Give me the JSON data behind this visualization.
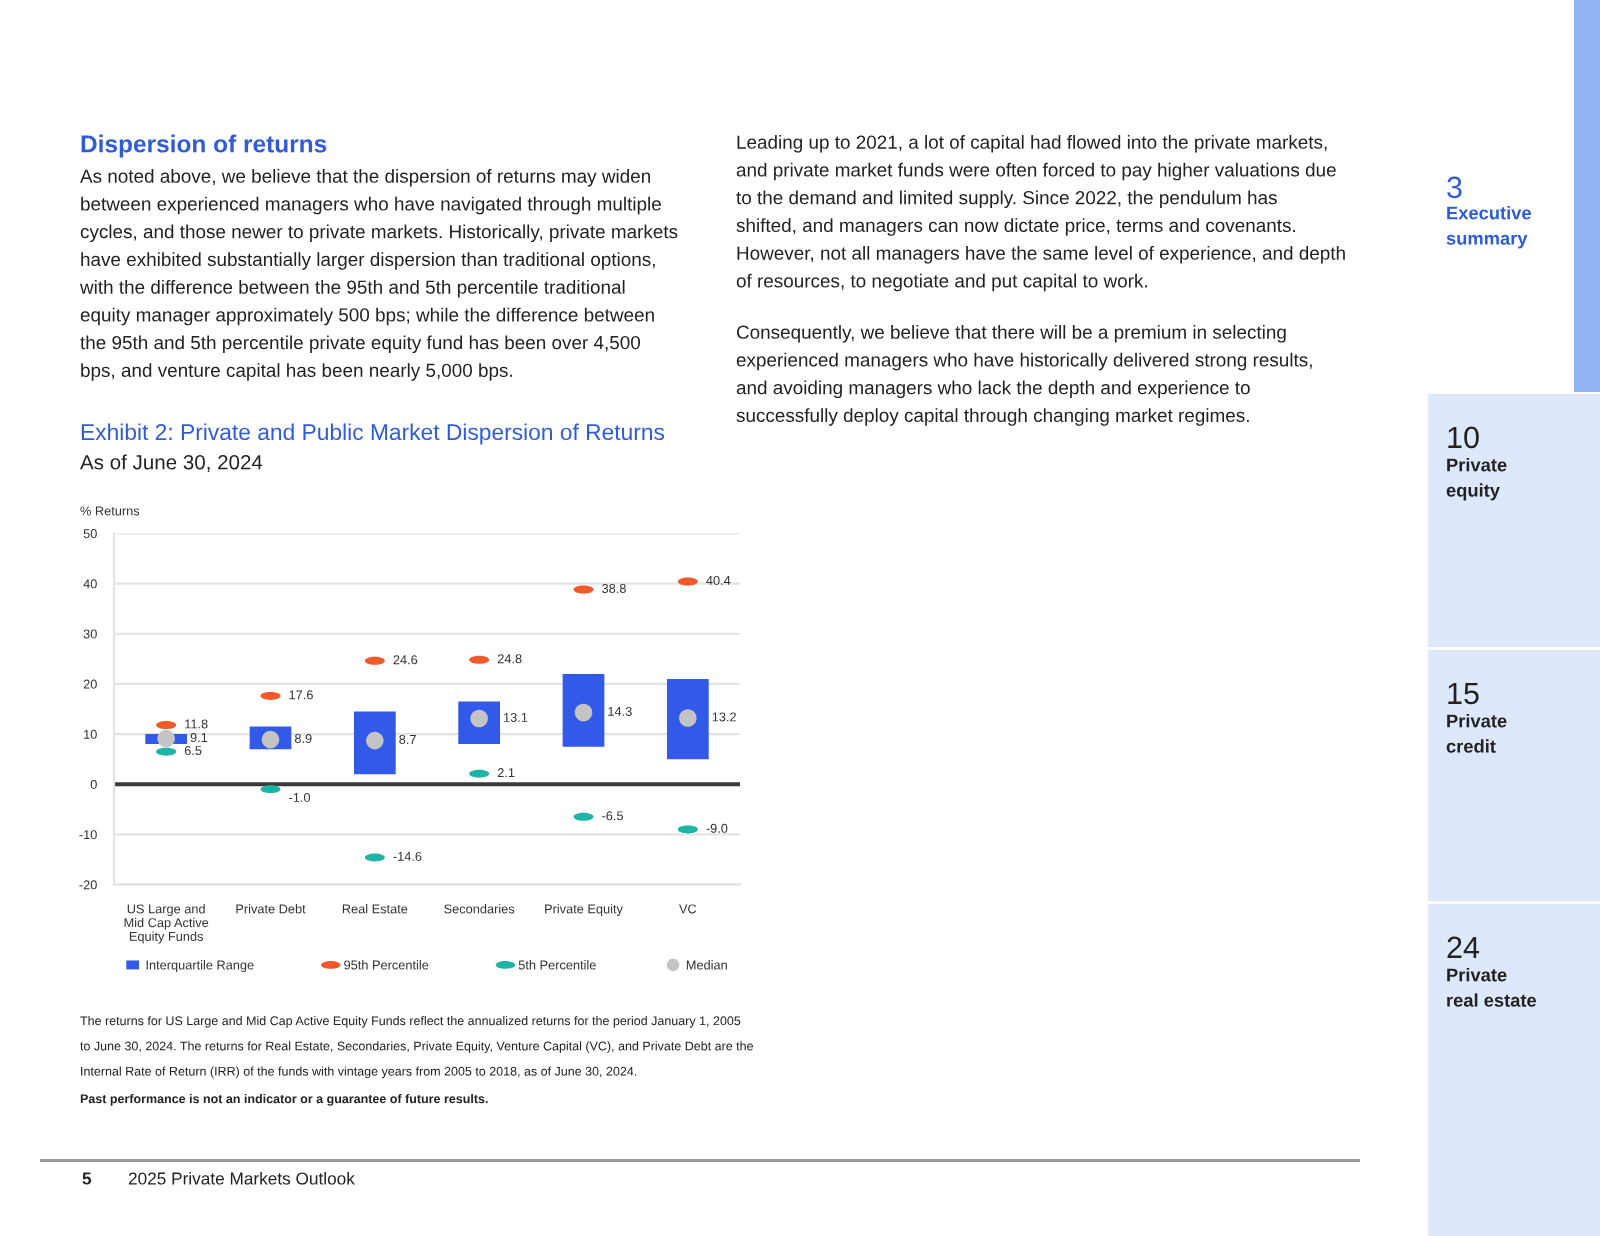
{
  "chart_data": {
    "type": "bar",
    "title": "Exhibit 2: Private and Public Market Dispersion of Returns",
    "subtitle": "As of June 30, 2024",
    "ylabel": "% Returns",
    "categories": [
      "US Large and\nMid Cap Active\nEquity Funds",
      "Private Debt",
      "Real Estate",
      "Secondaries",
      "Private Equity",
      "VC"
    ],
    "series": [
      {
        "name": "Interquartile Range",
        "color": "#3359e8",
        "base": [
          8,
          7,
          2,
          8,
          7.5,
          5
        ],
        "values": [
          2,
          4.5,
          12.5,
          8.5,
          14.5,
          16
        ]
      },
      {
        "name": "95th Percentile",
        "type": "scatter",
        "color": "#f05a2a",
        "x": [
          "US Large and\nMid Cap Active\nEquity Funds",
          "Private Debt",
          "Real Estate",
          "Secondaries",
          "Private Equity",
          "VC"
        ],
        "values": [
          11.8,
          17.6,
          24.6,
          24.8,
          38.8,
          40.4
        ],
        "value_labels": [
          "11.8",
          "17.6",
          "24.6",
          "24.8",
          "38.8",
          "40.4"
        ]
      },
      {
        "name": "5th Percentile",
        "type": "scatter",
        "color": "#1fb5a6",
        "x": [
          "US Large and\nMid Cap Active\nEquity Funds",
          "Private Debt",
          "Real Estate",
          "Secondaries",
          "Private Equity",
          "VC"
        ],
        "values": [
          6.5,
          -1.0,
          -14.6,
          2.1,
          -6.5,
          -9.0
        ],
        "value_labels": [
          "6.5",
          "-1.0",
          "-14.6",
          "2.1",
          "-6.5",
          "-9.0"
        ]
      },
      {
        "name": "Median",
        "type": "scatter",
        "marker": "circle",
        "color": "#c4c4c4",
        "x": [
          "US Large and\nMid Cap Active\nEquity Funds",
          "Private Debt",
          "Real Estate",
          "Secondaries",
          "Private Equity",
          "VC"
        ],
        "values": [
          9.1,
          8.9,
          8.7,
          13.1,
          14.3,
          13.2
        ],
        "value_labels": [
          "9.1",
          "8.9",
          "8.7",
          "13.1",
          "14.3",
          "13.2"
        ]
      }
    ],
    "ylim": [
      -20,
      50
    ],
    "yticks": [
      -20,
      -10,
      0,
      10,
      20,
      30,
      40,
      50
    ],
    "grid": "y",
    "legend": "bottom",
    "ref_lines": [
      {
        "axis": "y",
        "value": 0,
        "color": "#3a3a3a"
      }
    ],
    "annotations": [
      "Dispersion of returns",
      "As noted above, we believe that the dispersion of returns may widen\nbetween experienced managers who have navigated through multiple\ncycles, and those newer to private markets. Historically, private markets\nhave exhibited substantially larger dispersion than traditional options,\nwith the difference between the 95th and 5th percentile traditional\nequity manager approximately 500 bps; while the difference between\nthe 95th and 5th percentile private equity fund has been over 4,500\nbps, and venture capital has been nearly 5,000 bps.",
      "Leading up to 2021, a lot of capital had flowed into the private markets,\nand private market funds were often forced to pay higher valuations due\nto the demand and limited supply. Since 2022, the pendulum has\nshifted, and managers can now dictate price, terms and covenants.\nHowever, not all managers have the same level of experience, and depth\nof resources, to negotiate and put capital to work.",
      "Consequently, we believe that there will be a premium in selecting\nexperienced managers who have historically delivered strong results,\nand avoiding managers who lack the depth and experience to\nsuccessfully deploy capital through changing market regimes.",
      "The returns for US Large and Mid Cap Active Equity Funds reflect the annualized returns for the period January 1, 2005\nto June 30, 2024. The returns for Real Estate, Secondaries, Private Equity, Venture Capital (VC), and Private Debt are the\nInternal Rate of Return (IRR) of the funds with vintage years from 2005 to 2018, as of June 30, 2024.",
      "Past performance is not an indicator or a guarantee of future results.",
      "3",
      "Executive\nsummary",
      "10",
      "Private\nequity",
      "15",
      "Private\ncredit",
      "24",
      "Private\nreal estate",
      "5",
      "2025 Private Markets Outlook"
    ]
  }
}
